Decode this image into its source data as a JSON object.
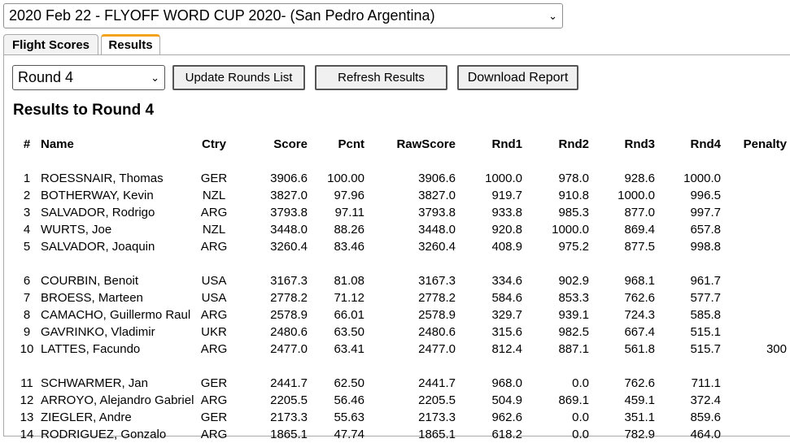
{
  "event_select": {
    "value": "2020 Feb 22 - FLYOFF WORD CUP 2020- (San Pedro Argentina)"
  },
  "tabs": [
    {
      "label": "Flight Scores",
      "active": false
    },
    {
      "label": "Results",
      "active": true
    }
  ],
  "controls": {
    "round_select_value": "Round 4",
    "update_label": "Update Rounds List",
    "refresh_label": "Refresh Results",
    "download_label": "Download Report"
  },
  "results_title": "Results to Round 4",
  "table": {
    "headers": [
      "#",
      "Name",
      "Ctry",
      "Score",
      "Pcnt",
      "RawScore",
      "Rnd1",
      "Rnd2",
      "Rnd3",
      "Rnd4",
      "Penalty"
    ],
    "rows": [
      [
        "1",
        "ROESSNAIR, Thomas",
        "GER",
        "3906.6",
        "100.00",
        "3906.6",
        "1000.0",
        "978.0",
        "928.6",
        "1000.0",
        ""
      ],
      [
        "2",
        "BOTHERWAY, Kevin",
        "NZL",
        "3827.0",
        "97.96",
        "3827.0",
        "919.7",
        "910.8",
        "1000.0",
        "996.5",
        ""
      ],
      [
        "3",
        "SALVADOR, Rodrigo",
        "ARG",
        "3793.8",
        "97.11",
        "3793.8",
        "933.8",
        "985.3",
        "877.0",
        "997.7",
        ""
      ],
      [
        "4",
        "WURTS, Joe",
        "NZL",
        "3448.0",
        "88.26",
        "3448.0",
        "920.8",
        "1000.0",
        "869.4",
        "657.8",
        ""
      ],
      [
        "5",
        "SALVADOR, Joaquin",
        "ARG",
        "3260.4",
        "83.46",
        "3260.4",
        "408.9",
        "975.2",
        "877.5",
        "998.8",
        ""
      ],
      [
        "6",
        "COURBIN, Benoit",
        "USA",
        "3167.3",
        "81.08",
        "3167.3",
        "334.6",
        "902.9",
        "968.1",
        "961.7",
        ""
      ],
      [
        "7",
        "BROESS, Marteen",
        "USA",
        "2778.2",
        "71.12",
        "2778.2",
        "584.6",
        "853.3",
        "762.6",
        "577.7",
        ""
      ],
      [
        "8",
        "CAMACHO, Guillermo Raul",
        "ARG",
        "2578.9",
        "66.01",
        "2578.9",
        "329.7",
        "939.1",
        "724.3",
        "585.8",
        ""
      ],
      [
        "9",
        "GAVRINKO, Vladimir",
        "UKR",
        "2480.6",
        "63.50",
        "2480.6",
        "315.6",
        "982.5",
        "667.4",
        "515.1",
        ""
      ],
      [
        "10",
        "LATTES, Facundo",
        "ARG",
        "2477.0",
        "63.41",
        "2477.0",
        "812.4",
        "887.1",
        "561.8",
        "515.7",
        "300"
      ],
      [
        "11",
        "SCHWARMER, Jan",
        "GER",
        "2441.7",
        "62.50",
        "2441.7",
        "968.0",
        "0.0",
        "762.6",
        "711.1",
        ""
      ],
      [
        "12",
        "ARROYO, Alejandro Gabriel",
        "ARG",
        "2205.5",
        "56.46",
        "2205.5",
        "504.9",
        "869.1",
        "459.1",
        "372.4",
        ""
      ],
      [
        "13",
        "ZIEGLER, Andre",
        "GER",
        "2173.3",
        "55.63",
        "2173.3",
        "962.6",
        "0.0",
        "351.1",
        "859.6",
        ""
      ],
      [
        "14",
        "RODRIGUEZ, Gonzalo",
        "ARG",
        "1865.1",
        "47.74",
        "1865.1",
        "618.2",
        "0.0",
        "782.9",
        "464.0",
        ""
      ]
    ]
  },
  "icons": {
    "dropdown": "chevron-down-icon"
  }
}
